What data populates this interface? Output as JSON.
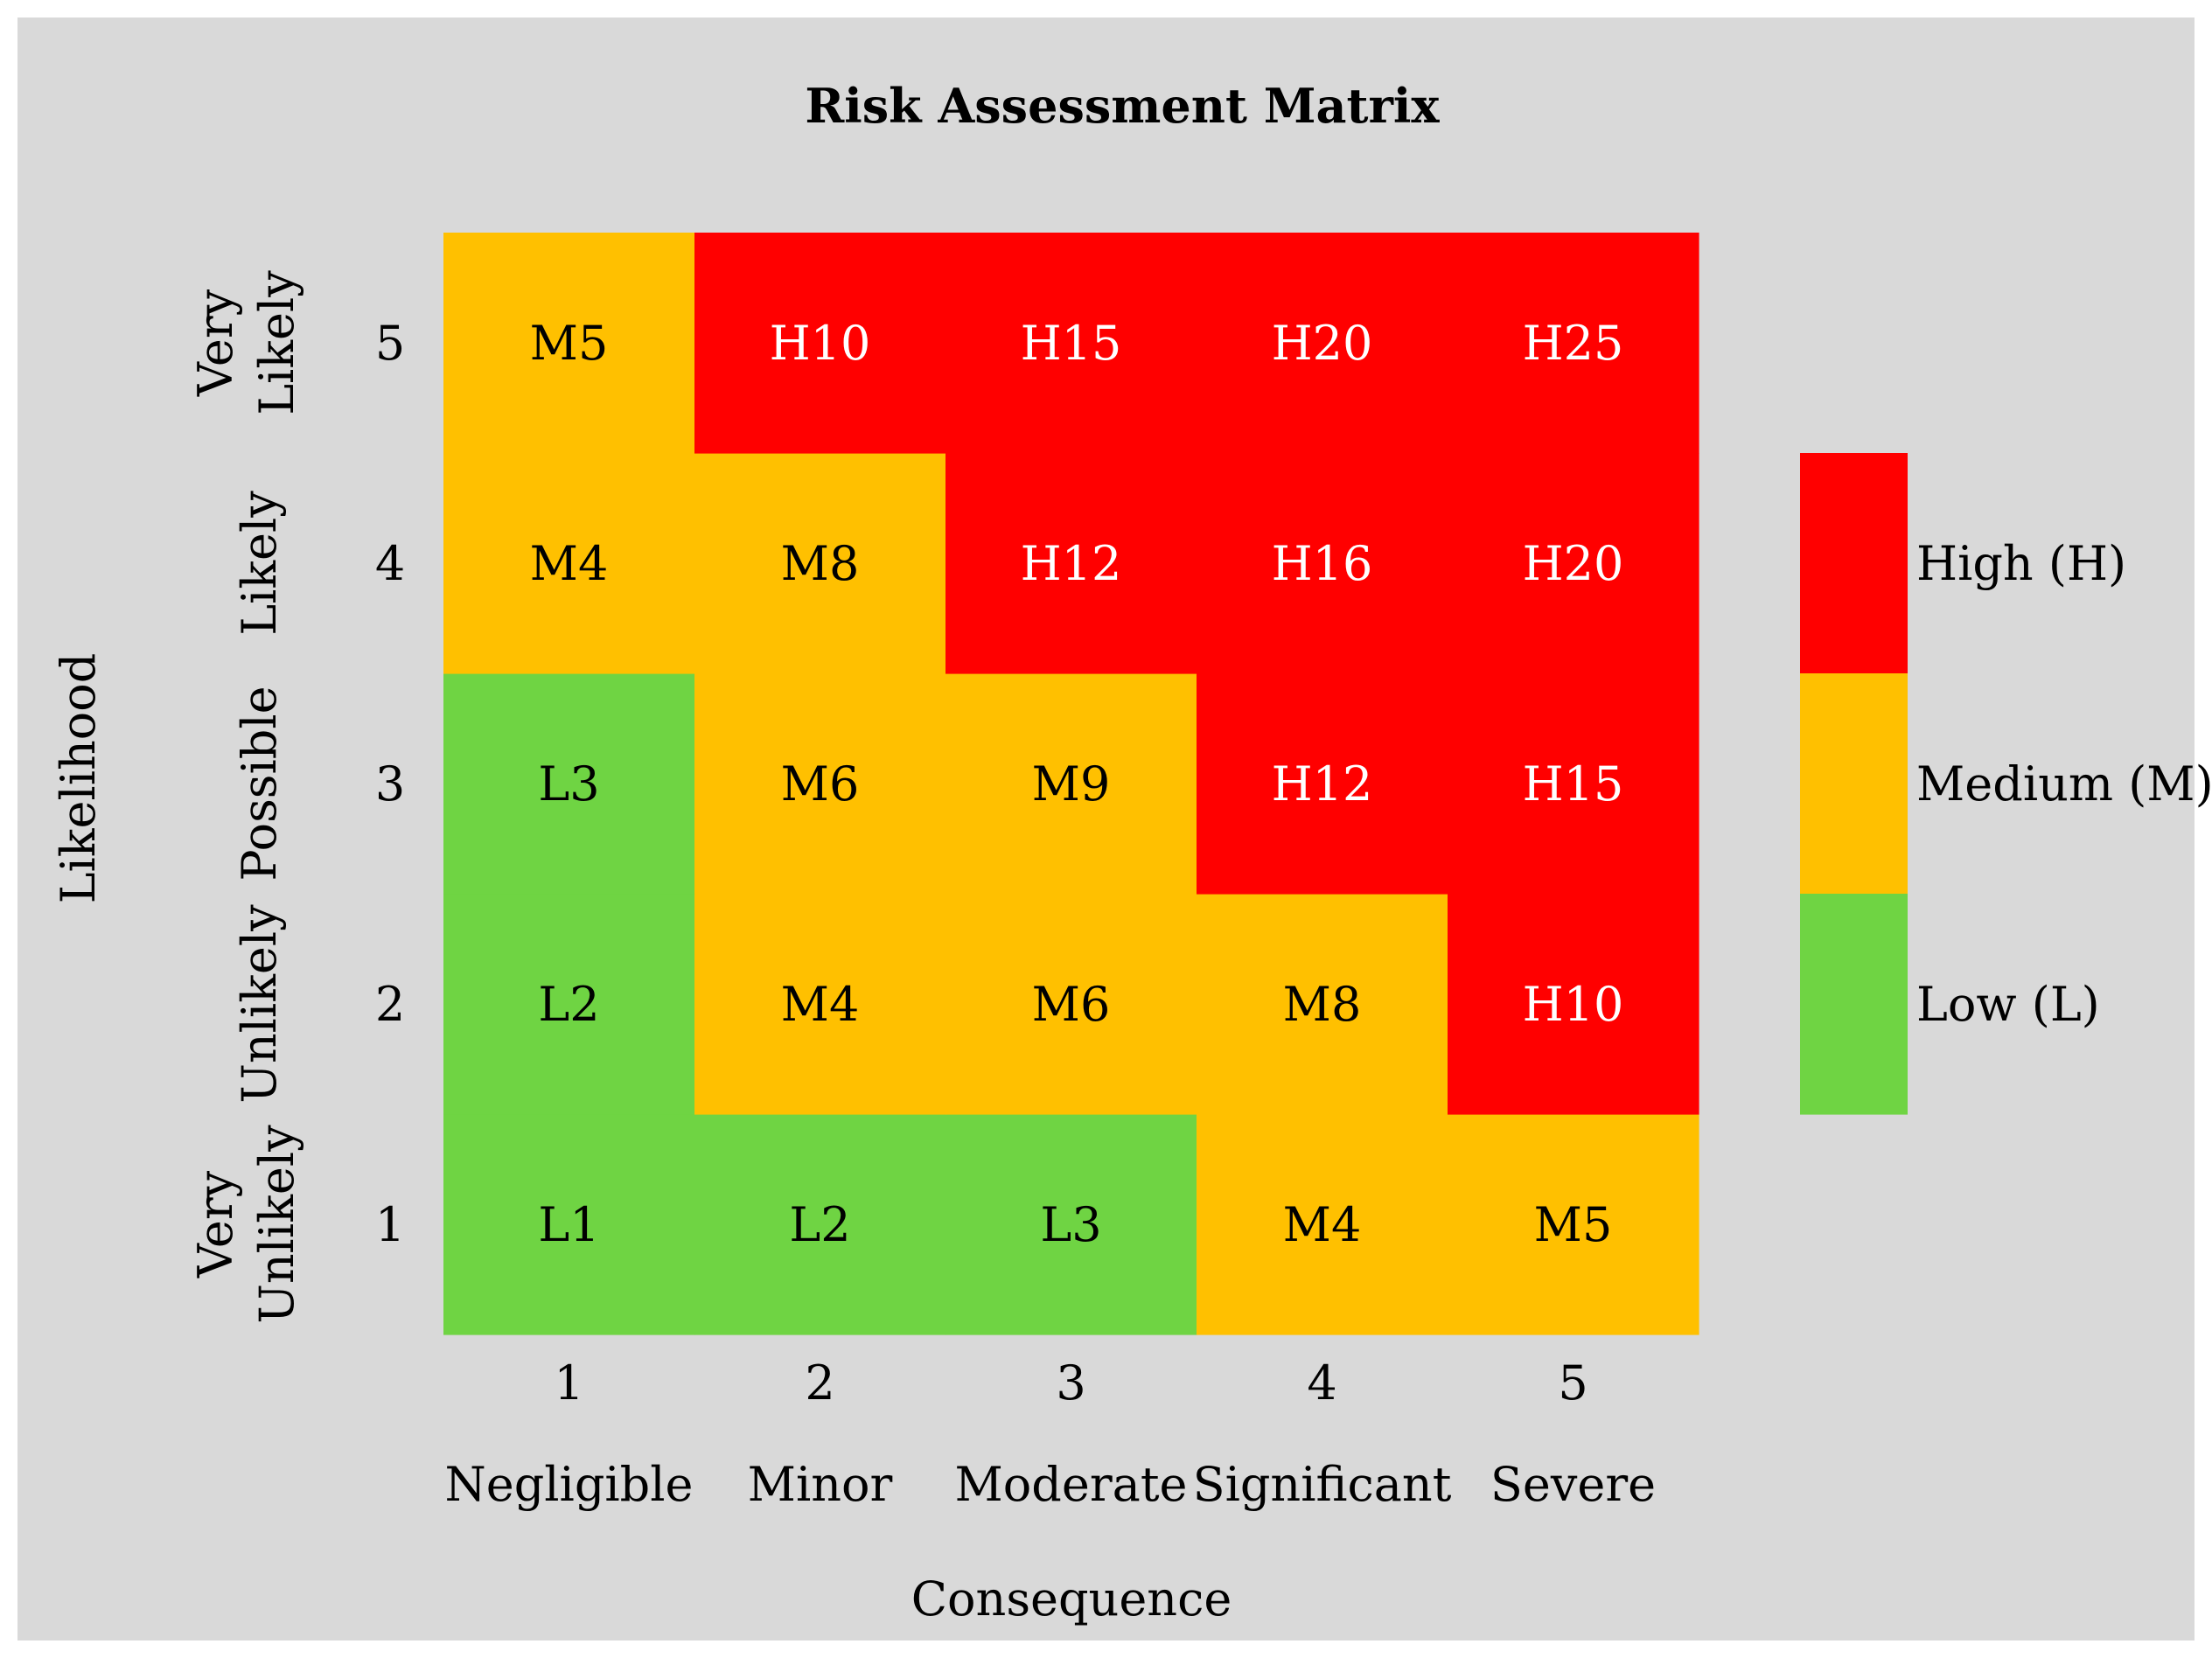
{
  "chart_data": {
    "type": "heatmap",
    "title": "Risk Assessment Matrix",
    "xlabel": "Consequence",
    "ylabel": "Likelihood",
    "x_ticks": [
      "1",
      "2",
      "3",
      "4",
      "5"
    ],
    "x_categories": [
      "Negligible",
      "Minor",
      "Moderate",
      "Significant",
      "Severe"
    ],
    "y_ticks": [
      "1",
      "2",
      "3",
      "4",
      "5"
    ],
    "y_categories": [
      [
        "Very",
        "Unlikely"
      ],
      [
        "Unlikely"
      ],
      [
        "Possible"
      ],
      [
        "Likely"
      ],
      [
        "Very",
        "Likely"
      ]
    ],
    "cells": [
      [
        "L1",
        "L2",
        "L3",
        "M4",
        "M5"
      ],
      [
        "L2",
        "M4",
        "M6",
        "M8",
        "H10"
      ],
      [
        "L3",
        "M6",
        "M9",
        "H12",
        "H15"
      ],
      [
        "M4",
        "M8",
        "H12",
        "H16",
        "H20"
      ],
      [
        "M5",
        "H10",
        "H15",
        "H20",
        "H25"
      ]
    ],
    "legend": [
      {
        "key": "H",
        "label": "High (H)",
        "color": "#ff0000",
        "text_color": "#ffffff"
      },
      {
        "key": "M",
        "label": "Medium (M)",
        "color": "#ffc000",
        "text_color": "#000000"
      },
      {
        "key": "L",
        "label": "Low (L)",
        "color": "#6fd443",
        "text_color": "#000000"
      }
    ],
    "legend_position": "right",
    "grid": false
  }
}
